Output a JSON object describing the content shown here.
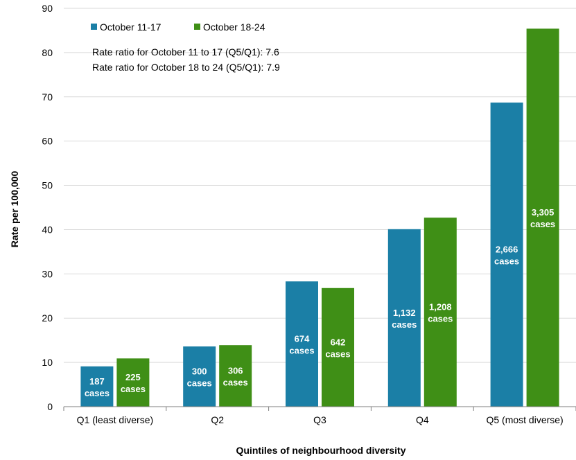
{
  "chart_data": {
    "type": "bar",
    "categories": [
      "Q1 (least diverse)",
      "Q2",
      "Q3",
      "Q4",
      "Q5 (most diverse)"
    ],
    "series": [
      {
        "name": "October 11-17",
        "color": "#1b7fa6",
        "values": [
          9.1,
          13.6,
          28.3,
          40.1,
          68.7
        ],
        "labels": [
          [
            "187",
            "cases"
          ],
          [
            "300",
            "cases"
          ],
          [
            "674",
            "cases"
          ],
          [
            "1,132",
            "cases"
          ],
          [
            "2,666",
            "cases"
          ]
        ]
      },
      {
        "name": "October 18-24",
        "color": "#3f8f16",
        "values": [
          10.9,
          13.9,
          26.8,
          42.7,
          85.4
        ],
        "labels": [
          [
            "225",
            "cases"
          ],
          [
            "306",
            "cases"
          ],
          [
            "642",
            "cases"
          ],
          [
            "1,208",
            "cases"
          ],
          [
            "3,305",
            "cases"
          ]
        ]
      }
    ],
    "ylim": [
      0,
      90
    ],
    "yticks": [
      0,
      10,
      20,
      30,
      40,
      50,
      60,
      70,
      80,
      90
    ],
    "xlabel": "Quintiles of neighbourhood diversity",
    "ylabel": "Rate per 100,000",
    "title": "",
    "grid": "horizontal",
    "legend": "top-left",
    "annotations": [
      "Rate ratio for October 11 to 17 (Q5/Q1): 7.6",
      "Rate ratio for October 18 to 24 (Q5/Q1): 7.9"
    ]
  }
}
